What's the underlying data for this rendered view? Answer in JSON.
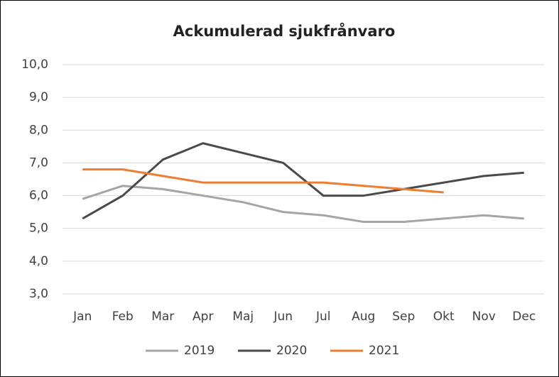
{
  "chart_data": {
    "type": "line",
    "title": "Ackumulerad sjukfrånvaro",
    "categories": [
      "Jan",
      "Feb",
      "Mar",
      "Apr",
      "Maj",
      "Jun",
      "Jul",
      "Aug",
      "Sep",
      "Okt",
      "Nov",
      "Dec"
    ],
    "series": [
      {
        "name": "2019",
        "color": "#a5a5a5",
        "values": [
          5.9,
          6.3,
          6.2,
          6.0,
          5.8,
          5.5,
          5.4,
          5.2,
          5.2,
          5.3,
          5.4,
          5.3
        ]
      },
      {
        "name": "2020",
        "color": "#4a4a4a",
        "values": [
          5.3,
          6.0,
          7.1,
          7.6,
          7.3,
          7.0,
          6.0,
          6.0,
          6.2,
          6.4,
          6.6,
          6.7
        ]
      },
      {
        "name": "2021",
        "color": "#ed7d31",
        "values": [
          6.8,
          6.8,
          6.6,
          6.4,
          6.4,
          6.4,
          6.4,
          6.3,
          6.2,
          6.1,
          null,
          null
        ]
      }
    ],
    "ylim": [
      3,
      10
    ],
    "yticks": [
      {
        "value": 3,
        "label": "3,0"
      },
      {
        "value": 4,
        "label": "4,0"
      },
      {
        "value": 5,
        "label": "5,0"
      },
      {
        "value": 6,
        "label": "6,0"
      },
      {
        "value": 7,
        "label": "7,0"
      },
      {
        "value": 8,
        "label": "8,0"
      },
      {
        "value": 9,
        "label": "9,0"
      },
      {
        "value": 10,
        "label": "10,0"
      }
    ],
    "grid": true,
    "legend": "bottom"
  }
}
